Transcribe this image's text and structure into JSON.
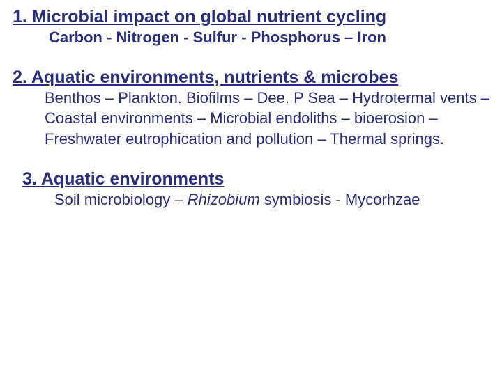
{
  "colors": {
    "text": "#2a2e7a",
    "background": "#ffffff"
  },
  "typography": {
    "heading_fontsize": 25,
    "subtext_fontsize": 22,
    "font_family": "Arial"
  },
  "sections": [
    {
      "heading": "1. Microbial impact on global nutrient cycling",
      "subtext": "Carbon - Nitrogen - Sulfur - Phosphorus – Iron",
      "subtext_bold": true
    },
    {
      "heading": "2. Aquatic environments, nutrients & microbes",
      "subtext": "Benthos – Plankton.  Biofilms – Dee. P Sea – Hydrotermal vents – Coastal environments – Microbial endoliths – bioerosion – Freshwater eutrophication and pollution – Thermal springs.",
      "subtext_bold": false
    },
    {
      "heading": "3. Aquatic environments",
      "subtext_prefix": "Soil microbiology – ",
      "subtext_italic": "Rhizobium",
      "subtext_suffix": " symbiosis - Mycorhzae",
      "subtext_bold": false
    }
  ]
}
